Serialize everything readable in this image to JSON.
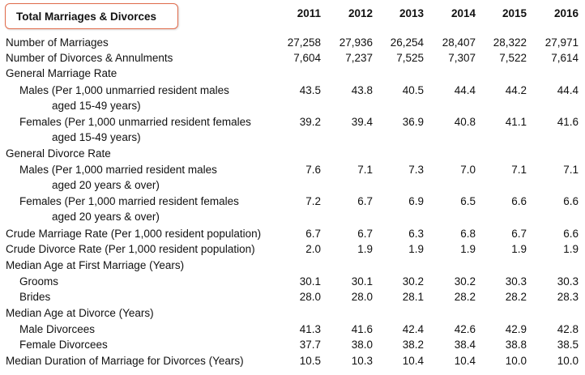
{
  "table": {
    "title": "Total Marriages & Divorces",
    "years": [
      "2011",
      "2012",
      "2013",
      "2014",
      "2015",
      "2016"
    ],
    "rows": [
      {
        "label": "Number of Marriages",
        "level": 0,
        "values": [
          "27,258",
          "27,936",
          "26,254",
          "28,407",
          "28,322",
          "27,971"
        ]
      },
      {
        "label": "Number of Divorces & Annulments",
        "level": 0,
        "values": [
          "7,604",
          "7,237",
          "7,525",
          "7,307",
          "7,522",
          "7,614"
        ]
      },
      {
        "label": "General Marriage Rate",
        "level": 0,
        "values": []
      },
      {
        "label": "Males (Per 1,000 unmarried resident males",
        "level": 1,
        "values": [
          "43.5",
          "43.8",
          "40.5",
          "44.4",
          "44.2",
          "44.4"
        ]
      },
      {
        "label": "aged 15-49 years)",
        "level": 2,
        "values": []
      },
      {
        "label": "Females (Per 1,000 unmarried resident females",
        "level": 1,
        "values": [
          "39.2",
          "39.4",
          "36.9",
          "40.8",
          "41.1",
          "41.6"
        ]
      },
      {
        "label": "aged 15-49 years)",
        "level": 2,
        "values": []
      },
      {
        "label": "General Divorce Rate",
        "level": 0,
        "values": []
      },
      {
        "label": "Males (Per 1,000 married resident males",
        "level": 1,
        "values": [
          "7.6",
          "7.1",
          "7.3",
          "7.0",
          "7.1",
          "7.1"
        ]
      },
      {
        "label": "aged 20 years & over)",
        "level": 2,
        "values": []
      },
      {
        "label": "Females (Per 1,000 married resident females",
        "level": 1,
        "values": [
          "7.2",
          "6.7",
          "6.9",
          "6.5",
          "6.6",
          "6.6"
        ]
      },
      {
        "label": "aged 20 years & over)",
        "level": 2,
        "values": []
      },
      {
        "label": "Crude Marriage Rate (Per 1,000 resident population)",
        "level": 0,
        "values": [
          "6.7",
          "6.7",
          "6.3",
          "6.8",
          "6.7",
          "6.6"
        ]
      },
      {
        "label": "Crude Divorce Rate (Per 1,000 resident population)",
        "level": 0,
        "values": [
          "2.0",
          "1.9",
          "1.9",
          "1.9",
          "1.9",
          "1.9"
        ]
      },
      {
        "label": "Median Age at First Marriage (Years)",
        "level": 0,
        "values": []
      },
      {
        "label": "Grooms",
        "level": 1,
        "values": [
          "30.1",
          "30.1",
          "30.2",
          "30.2",
          "30.3",
          "30.3"
        ]
      },
      {
        "label": "Brides",
        "level": 1,
        "values": [
          "28.0",
          "28.0",
          "28.1",
          "28.2",
          "28.2",
          "28.3"
        ]
      },
      {
        "label": "Median Age at Divorce (Years)",
        "level": 0,
        "values": []
      },
      {
        "label": "Male Divorcees",
        "level": 1,
        "values": [
          "41.3",
          "41.6",
          "42.4",
          "42.6",
          "42.9",
          "42.8"
        ]
      },
      {
        "label": "Female Divorcees",
        "level": 1,
        "values": [
          "37.7",
          "38.0",
          "38.2",
          "38.4",
          "38.8",
          "38.5"
        ]
      },
      {
        "label": "Median Duration of Marriage for Divorces (Years)",
        "level": 0,
        "values": [
          "10.5",
          "10.3",
          "10.4",
          "10.4",
          "10.0",
          "10.0"
        ]
      }
    ]
  },
  "colors": {
    "title_border": "#e06a4a",
    "text": "#111111",
    "background": "#ffffff"
  }
}
